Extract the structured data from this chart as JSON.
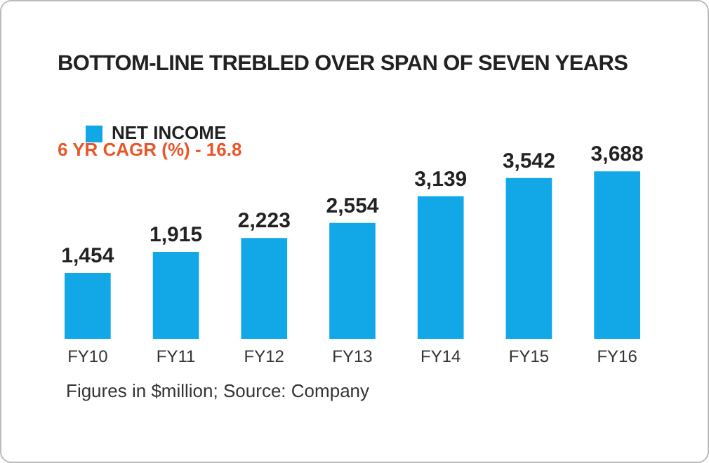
{
  "chart_data": {
    "type": "bar",
    "title": "BOTTOM-LINE TREBLED OVER SPAN OF SEVEN YEARS",
    "categories": [
      "FY10",
      "FY11",
      "FY12",
      "FY13",
      "FY14",
      "FY15",
      "FY16"
    ],
    "series": [
      {
        "name": "NET INCOME",
        "color": "#12a8e8",
        "values": [
          1454,
          1915,
          2223,
          2554,
          3139,
          3542,
          3688
        ],
        "value_labels": [
          "1,454",
          "1,915",
          "2,223",
          "2,554",
          "3,139",
          "3,542",
          "3,688"
        ]
      }
    ],
    "annotations": [
      "6 YR CAGR (%) - 16.8",
      "Figures in $million; Source: Company"
    ],
    "legend": "top left",
    "grid": false
  }
}
